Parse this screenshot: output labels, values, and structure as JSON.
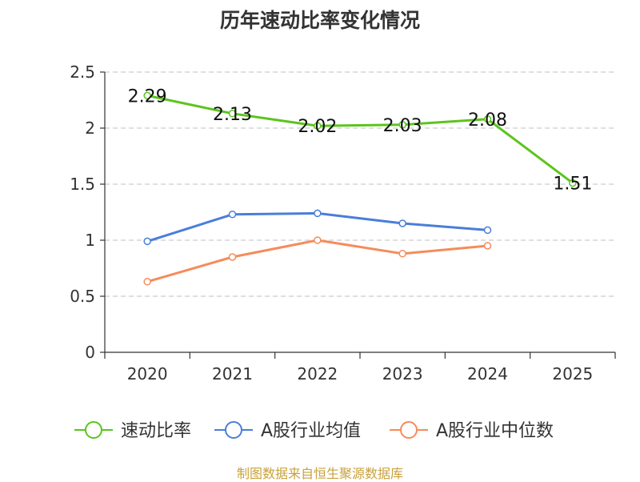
{
  "title": "历年速动比率变化情况",
  "source": "制图数据来自恒生聚源数据库",
  "colors": {
    "series1": "#5cc41e",
    "series2": "#4a7ed9",
    "series3": "#f58c5a",
    "grid": "#cccccc",
    "axis": "#333333"
  },
  "chart_data": {
    "type": "line",
    "title": "历年速动比率变化情况",
    "xlabel": "",
    "ylabel": "",
    "categories": [
      "2020",
      "2021",
      "2022",
      "2023",
      "2024",
      "2025"
    ],
    "ylim": [
      0,
      2.5
    ],
    "yticks": [
      0,
      0.5,
      1,
      1.5,
      2,
      2.5
    ],
    "ytick_labels": [
      "0",
      "0.5",
      "1",
      "1.5",
      "2",
      "2.5"
    ],
    "grid": true,
    "legend_position": "bottom",
    "series": [
      {
        "name": "速动比率",
        "values": [
          2.29,
          2.13,
          2.02,
          2.03,
          2.08,
          1.51
        ],
        "labels": [
          "2.29",
          "2.13",
          "2.02",
          "2.03",
          "2.08",
          "1.51"
        ],
        "show_labels": true
      },
      {
        "name": "A股行业均值",
        "values": [
          0.99,
          1.23,
          1.24,
          1.15,
          1.09,
          null
        ],
        "show_labels": false
      },
      {
        "name": "A股行业中位数",
        "values": [
          0.63,
          0.85,
          1.0,
          0.88,
          0.95,
          null
        ],
        "show_labels": false
      }
    ]
  }
}
